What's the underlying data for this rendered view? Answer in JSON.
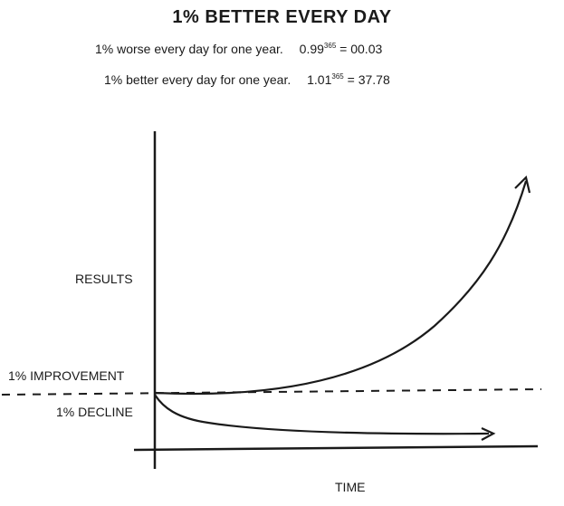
{
  "title": "1% BETTER EVERY DAY",
  "formulas": [
    {
      "phrase": "1% worse every day for one year.",
      "base": "0.99",
      "exponent": "365",
      "result": "= 00.03"
    },
    {
      "phrase": "1% better every day for one year.",
      "base": "1.01",
      "exponent": "365",
      "result": "= 37.78"
    }
  ],
  "axis_labels": {
    "y": "RESULTS",
    "x": "TIME",
    "improvement": "1% IMPROVEMENT",
    "decline": "1% DECLINE"
  },
  "colors": {
    "ink": "#1a1a1a",
    "background": "#ffffff"
  }
}
